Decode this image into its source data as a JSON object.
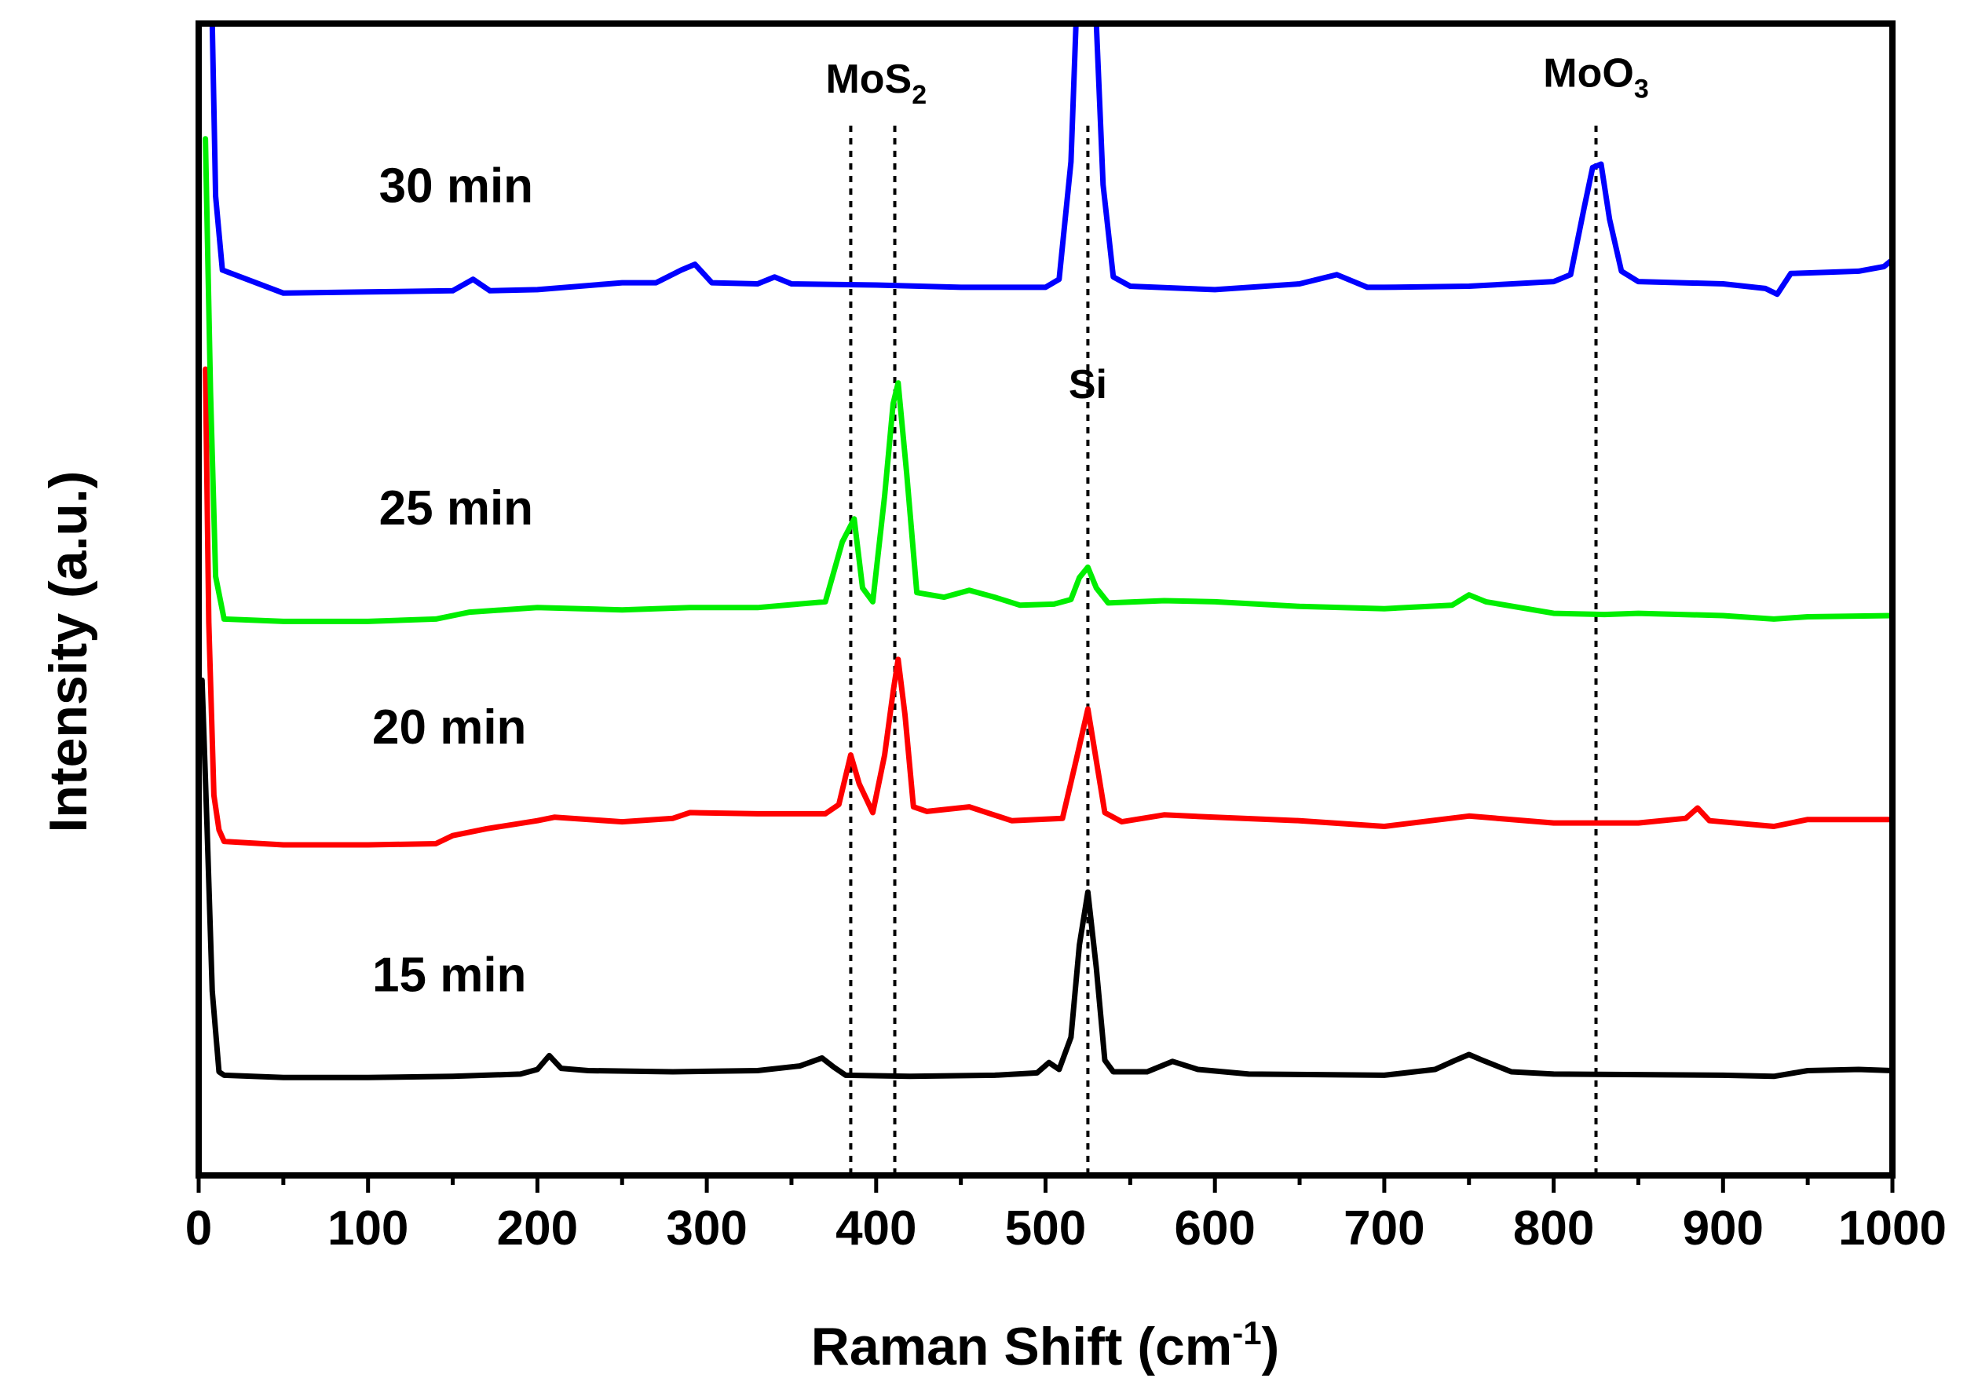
{
  "chart_data": {
    "type": "line",
    "title": "",
    "xlabel": {
      "main": "Raman Shift (cm",
      "sup": "-1",
      "close": ")"
    },
    "ylabel": "Intensity (a.u.)",
    "xlim": [
      0,
      1000
    ],
    "ylim": [
      0,
      100
    ],
    "x_ticks": [
      0,
      100,
      200,
      300,
      400,
      500,
      600,
      700,
      800,
      900,
      1000
    ],
    "y_ticks_shown": false,
    "grid": false,
    "legend": "none",
    "colors": {
      "15 min": "#000000",
      "20 min": "#ff0000",
      "25 min": "#00ee00",
      "30 min": "#0000ff",
      "axis": "#000000"
    },
    "series": [
      {
        "name": "15 min",
        "color": "#000000",
        "points": [
          [
            2,
            43
          ],
          [
            5,
            30
          ],
          [
            8,
            16
          ],
          [
            12,
            9
          ],
          [
            15,
            8.7
          ],
          [
            50,
            8.5
          ],
          [
            100,
            8.5
          ],
          [
            150,
            8.6
          ],
          [
            190,
            8.8
          ],
          [
            200,
            9.2
          ],
          [
            207,
            10.4
          ],
          [
            214,
            9.3
          ],
          [
            230,
            9.1
          ],
          [
            280,
            9
          ],
          [
            330,
            9.1
          ],
          [
            355,
            9.5
          ],
          [
            368,
            10.2
          ],
          [
            375,
            9.4
          ],
          [
            382,
            8.7
          ],
          [
            420,
            8.6
          ],
          [
            470,
            8.7
          ],
          [
            495,
            8.9
          ],
          [
            502,
            9.8
          ],
          [
            508,
            9.2
          ],
          [
            515,
            12
          ],
          [
            520,
            20
          ],
          [
            525,
            24.6
          ],
          [
            530,
            18
          ],
          [
            535,
            10
          ],
          [
            540,
            9
          ],
          [
            560,
            9
          ],
          [
            575,
            9.9
          ],
          [
            590,
            9.2
          ],
          [
            620,
            8.8
          ],
          [
            700,
            8.7
          ],
          [
            730,
            9.2
          ],
          [
            742,
            10
          ],
          [
            750,
            10.5
          ],
          [
            758,
            10
          ],
          [
            775,
            9
          ],
          [
            800,
            8.8
          ],
          [
            900,
            8.7
          ],
          [
            930,
            8.6
          ],
          [
            950,
            9.1
          ],
          [
            980,
            9.2
          ],
          [
            1000,
            9.1
          ]
        ]
      },
      {
        "name": "20 min",
        "color": "#ff0000",
        "points": [
          [
            4,
            70
          ],
          [
            6,
            48
          ],
          [
            9,
            33
          ],
          [
            12,
            30
          ],
          [
            15,
            29
          ],
          [
            50,
            28.7
          ],
          [
            100,
            28.7
          ],
          [
            140,
            28.8
          ],
          [
            150,
            29.5
          ],
          [
            170,
            30.1
          ],
          [
            200,
            30.8
          ],
          [
            210,
            31.1
          ],
          [
            250,
            30.7
          ],
          [
            280,
            31
          ],
          [
            290,
            31.5
          ],
          [
            330,
            31.4
          ],
          [
            370,
            31.4
          ],
          [
            378,
            32.2
          ],
          [
            385,
            36.5
          ],
          [
            390,
            34
          ],
          [
            398,
            31.5
          ],
          [
            405,
            36.5
          ],
          [
            410,
            42
          ],
          [
            413,
            44.8
          ],
          [
            417,
            40
          ],
          [
            422,
            32
          ],
          [
            430,
            31.6
          ],
          [
            455,
            32
          ],
          [
            480,
            30.8
          ],
          [
            495,
            30.9
          ],
          [
            510,
            31
          ],
          [
            518,
            36
          ],
          [
            525,
            40.5
          ],
          [
            530,
            36
          ],
          [
            535,
            31.5
          ],
          [
            545,
            30.7
          ],
          [
            570,
            31.3
          ],
          [
            600,
            31.1
          ],
          [
            650,
            30.8
          ],
          [
            700,
            30.3
          ],
          [
            750,
            31.2
          ],
          [
            800,
            30.6
          ],
          [
            850,
            30.6
          ],
          [
            878,
            31
          ],
          [
            885,
            31.9
          ],
          [
            892,
            30.8
          ],
          [
            930,
            30.3
          ],
          [
            950,
            30.9
          ],
          [
            1000,
            30.9
          ]
        ]
      },
      {
        "name": "25 min",
        "color": "#00ee00",
        "points": [
          [
            4,
            90
          ],
          [
            7,
            68
          ],
          [
            10,
            52
          ],
          [
            15,
            48.3
          ],
          [
            50,
            48.1
          ],
          [
            100,
            48.1
          ],
          [
            140,
            48.3
          ],
          [
            160,
            48.9
          ],
          [
            200,
            49.3
          ],
          [
            250,
            49.1
          ],
          [
            290,
            49.3
          ],
          [
            330,
            49.3
          ],
          [
            370,
            49.8
          ],
          [
            380,
            55
          ],
          [
            387,
            57
          ],
          [
            392,
            51
          ],
          [
            398,
            49.8
          ],
          [
            405,
            59
          ],
          [
            410,
            67
          ],
          [
            413,
            68.8
          ],
          [
            418,
            61
          ],
          [
            424,
            50.6
          ],
          [
            440,
            50.2
          ],
          [
            455,
            50.8
          ],
          [
            470,
            50.2
          ],
          [
            485,
            49.5
          ],
          [
            505,
            49.6
          ],
          [
            515,
            50
          ],
          [
            520,
            51.9
          ],
          [
            525,
            52.8
          ],
          [
            530,
            51
          ],
          [
            537,
            49.7
          ],
          [
            570,
            49.9
          ],
          [
            600,
            49.8
          ],
          [
            650,
            49.4
          ],
          [
            700,
            49.2
          ],
          [
            740,
            49.5
          ],
          [
            750,
            50.4
          ],
          [
            760,
            49.8
          ],
          [
            800,
            48.8
          ],
          [
            830,
            48.7
          ],
          [
            850,
            48.8
          ],
          [
            900,
            48.6
          ],
          [
            930,
            48.3
          ],
          [
            950,
            48.5
          ],
          [
            1000,
            48.6
          ]
        ]
      },
      {
        "name": "30 min",
        "color": "#0000ff",
        "points": [
          [
            8,
            100
          ],
          [
            10,
            85
          ],
          [
            14,
            78.6
          ],
          [
            50,
            76.6
          ],
          [
            100,
            76.7
          ],
          [
            150,
            76.8
          ],
          [
            162,
            77.8
          ],
          [
            172,
            76.8
          ],
          [
            200,
            76.9
          ],
          [
            250,
            77.5
          ],
          [
            270,
            77.5
          ],
          [
            285,
            78.6
          ],
          [
            293,
            79.1
          ],
          [
            303,
            77.5
          ],
          [
            330,
            77.4
          ],
          [
            340,
            78
          ],
          [
            350,
            77.4
          ],
          [
            400,
            77.3
          ],
          [
            450,
            77.1
          ],
          [
            500,
            77.1
          ],
          [
            508,
            77.8
          ],
          [
            515,
            88
          ],
          [
            518,
            100
          ],
          [
            530,
            100
          ],
          [
            534,
            86
          ],
          [
            540,
            78
          ],
          [
            550,
            77.2
          ],
          [
            600,
            76.9
          ],
          [
            650,
            77.4
          ],
          [
            672,
            78.2
          ],
          [
            690,
            77.1
          ],
          [
            700,
            77.1
          ],
          [
            750,
            77.2
          ],
          [
            800,
            77.6
          ],
          [
            810,
            78.2
          ],
          [
            818,
            84
          ],
          [
            823,
            87.5
          ],
          [
            828,
            87.8
          ],
          [
            833,
            83
          ],
          [
            840,
            78.5
          ],
          [
            850,
            77.6
          ],
          [
            900,
            77.4
          ],
          [
            925,
            77
          ],
          [
            932,
            76.5
          ],
          [
            940,
            78.3
          ],
          [
            960,
            78.4
          ],
          [
            980,
            78.5
          ],
          [
            995,
            78.9
          ],
          [
            1000,
            79.5
          ]
        ]
      }
    ],
    "reference_lines": [
      {
        "x": 385,
        "label": "MoS2"
      },
      {
        "x": 411,
        "label": "MoS2"
      },
      {
        "x": 525,
        "label": "Si"
      },
      {
        "x": 825,
        "label": "MoO3"
      }
    ],
    "annotations": [
      {
        "text_main": "MoS",
        "text_sub": "2",
        "x": 400,
        "y": 94
      },
      {
        "text_main": "Si",
        "text_sub": "",
        "x": 525,
        "y": 67.5
      },
      {
        "text_main": "MoO",
        "text_sub": "3",
        "x": 825,
        "y": 94.5
      },
      {
        "text_main": "30 min",
        "text_sub": "",
        "x": 152,
        "y": 84.5
      },
      {
        "text_main": "25 min",
        "text_sub": "",
        "x": 152,
        "y": 56.5
      },
      {
        "text_main": "20 min",
        "text_sub": "",
        "x": 148,
        "y": 37.5
      },
      {
        "text_main": "15 min",
        "text_sub": "",
        "x": 148,
        "y": 16
      }
    ]
  }
}
